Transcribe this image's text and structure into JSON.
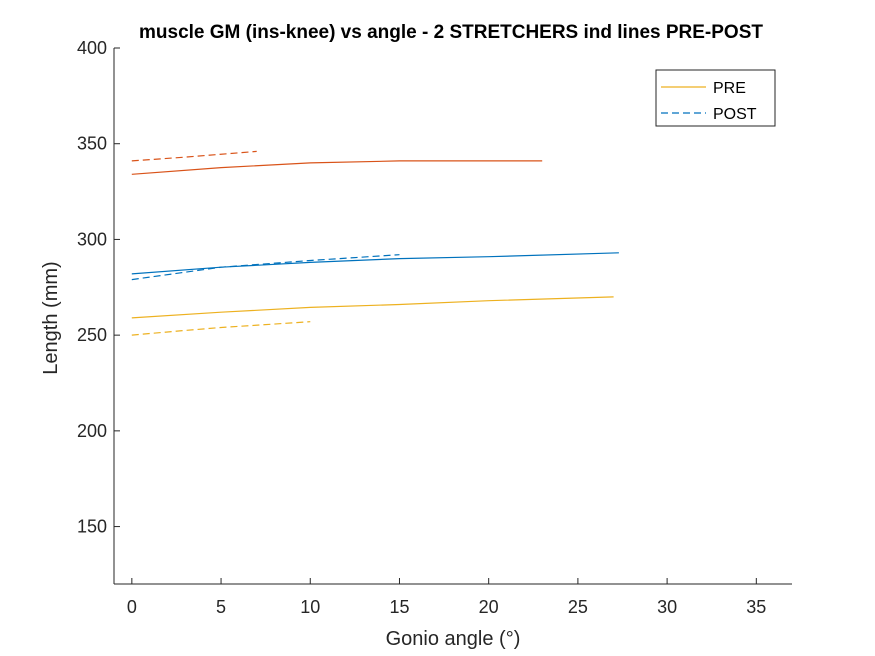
{
  "chart_data": {
    "type": "line",
    "title": "muscle GM (ins-knee) vs angle - 2 STRETCHERS ind lines PRE-POST",
    "xlabel": "Gonio angle (°)",
    "ylabel": "Length (mm)",
    "xlim": [
      -1,
      37
    ],
    "ylim": [
      120,
      400
    ],
    "xticks": [
      0,
      5,
      10,
      15,
      20,
      25,
      30,
      35
    ],
    "yticks": [
      150,
      200,
      250,
      300,
      350,
      400
    ],
    "grid": false,
    "legend_position": "top-right",
    "legend": [
      {
        "label": "PRE",
        "style": "solid",
        "color": "#EDB120"
      },
      {
        "label": "POST",
        "style": "dashed",
        "color": "#0072BD"
      }
    ],
    "series": [
      {
        "group": "PRE",
        "color": "#D95319",
        "dash": false,
        "x": [
          0,
          5,
          10,
          15,
          20,
          23
        ],
        "y": [
          334,
          337.5,
          340,
          341,
          341,
          341
        ]
      },
      {
        "group": "POST",
        "color": "#D95319",
        "dash": true,
        "x": [
          0,
          3,
          7
        ],
        "y": [
          341,
          343,
          346
        ]
      },
      {
        "group": "PRE",
        "color": "#0072BD",
        "dash": false,
        "x": [
          0,
          5,
          10,
          15,
          20,
          27.3
        ],
        "y": [
          282,
          285.5,
          288,
          290,
          291,
          293
        ]
      },
      {
        "group": "POST",
        "color": "#0072BD",
        "dash": true,
        "x": [
          0,
          5,
          10,
          15
        ],
        "y": [
          279,
          285.5,
          289,
          292
        ]
      },
      {
        "group": "PRE",
        "color": "#EDB120",
        "dash": false,
        "x": [
          0,
          5,
          10,
          15,
          20,
          27
        ],
        "y": [
          259,
          262,
          264.5,
          266,
          268,
          270
        ]
      },
      {
        "group": "POST",
        "color": "#EDB120",
        "dash": true,
        "x": [
          0,
          3,
          5,
          10
        ],
        "y": [
          250,
          252.5,
          254,
          257
        ]
      }
    ]
  }
}
